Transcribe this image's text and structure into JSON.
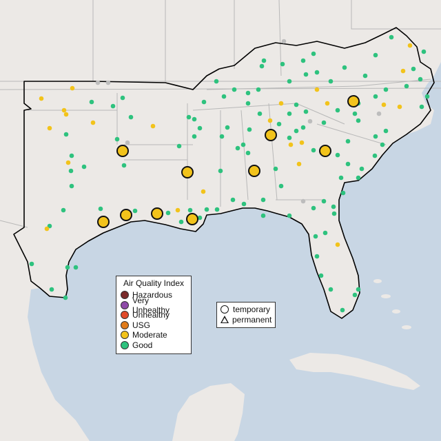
{
  "map": {
    "colors": {
      "ocean": "#c8d6e4",
      "land": "#ece9e6",
      "state_border": "#b8b8b8",
      "region_outline": "#000000"
    },
    "aqi_colors": {
      "good": "#2ec27e",
      "moderate": "#f2c31b",
      "usg": "#e07b1a",
      "unhealthy": "#e04a2a",
      "very_unhealthy": "#8e4aa8",
      "hazardous": "#7a2a2a",
      "unknown": "#bdbdbd"
    }
  },
  "legend_aqi": {
    "title": "Air Quality Index",
    "items": [
      {
        "label": "Hazardous",
        "color": "#7a2a2a"
      },
      {
        "label": "Very Unhealthy",
        "color": "#8e4aa8"
      },
      {
        "label": "Unhealthy",
        "color": "#e04a2a"
      },
      {
        "label": "USG",
        "color": "#e07b1a"
      },
      {
        "label": "Moderate",
        "color": "#f2c31b"
      },
      {
        "label": "Good",
        "color": "#2ec27e"
      }
    ]
  },
  "legend_shape": {
    "items": [
      {
        "label": "temporary",
        "shape": "circle-icon"
      },
      {
        "label": "permanent",
        "shape": "triangle-icon"
      }
    ]
  }
}
